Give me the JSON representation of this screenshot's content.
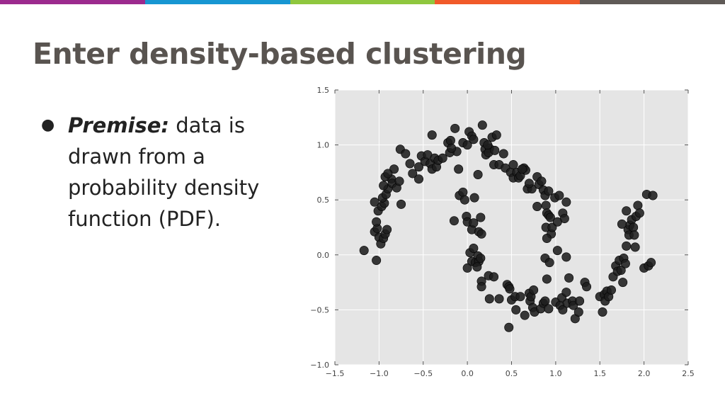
{
  "header": {
    "bar_colors": [
      "#9c2a8e",
      "#1796d2",
      "#8fc73e",
      "#f15a29",
      "#5f5a57"
    ]
  },
  "slide": {
    "title": "Enter density-based clustering",
    "bullet": {
      "symbol": "●",
      "label": "Premise:",
      "text": " data is drawn from a probability density function (PDF)."
    }
  },
  "chart_data": {
    "type": "scatter",
    "title": "",
    "xlabel": "",
    "ylabel": "",
    "xlim": [
      -1.5,
      2.5
    ],
    "ylim": [
      -1.0,
      1.5
    ],
    "x_ticks": [
      "−1.5",
      "−1.0",
      "−0.5",
      "0.0",
      "0.5",
      "1.0",
      "1.5",
      "2.0",
      "2.5"
    ],
    "y_ticks": [
      "−1.0",
      "−0.5",
      "0.0",
      "0.5",
      "1.0",
      "1.5"
    ],
    "grid": true,
    "background": "#e5e5e5",
    "marker_color": "#1e1e1e",
    "series": [
      {
        "points": [
          [
            -1.17,
            0.04
          ],
          [
            -1.03,
            -0.05
          ],
          [
            -1.05,
            0.21
          ],
          [
            -1.02,
            0.24
          ],
          [
            -1.03,
            0.3
          ],
          [
            -1.0,
            0.16
          ],
          [
            -0.98,
            0.1
          ],
          [
            -0.95,
            0.15
          ],
          [
            -0.93,
            0.19
          ],
          [
            -0.91,
            0.23
          ],
          [
            -1.05,
            0.48
          ],
          [
            -1.01,
            0.4
          ],
          [
            -0.97,
            0.44
          ],
          [
            -0.94,
            0.47
          ],
          [
            -0.96,
            0.52
          ],
          [
            -0.92,
            0.55
          ],
          [
            -0.9,
            0.6
          ],
          [
            -0.86,
            0.69
          ],
          [
            -0.83,
            0.78
          ],
          [
            -0.95,
            0.63
          ],
          [
            -0.93,
            0.71
          ],
          [
            -0.9,
            0.74
          ],
          [
            -0.85,
            0.65
          ],
          [
            -0.8,
            0.61
          ],
          [
            -0.77,
            0.67
          ],
          [
            -0.75,
            0.46
          ],
          [
            -0.76,
            0.96
          ],
          [
            -0.7,
            0.92
          ],
          [
            -0.65,
            0.83
          ],
          [
            -0.62,
            0.74
          ],
          [
            -0.55,
            0.69
          ],
          [
            -0.55,
            0.8
          ],
          [
            -0.52,
            0.9
          ],
          [
            -0.48,
            0.85
          ],
          [
            -0.45,
            0.91
          ],
          [
            -0.42,
            0.83
          ],
          [
            -0.4,
            0.78
          ],
          [
            -0.37,
            0.88
          ],
          [
            -0.35,
            0.8
          ],
          [
            -0.33,
            0.86
          ],
          [
            -0.28,
            0.88
          ],
          [
            -0.4,
            1.09
          ],
          [
            -0.22,
            1.02
          ],
          [
            -0.19,
            1.04
          ],
          [
            -0.14,
            1.15
          ],
          [
            -0.12,
            0.94
          ],
          [
            -0.1,
            0.78
          ],
          [
            -0.05,
            1.02
          ],
          [
            0.0,
            1.0
          ],
          [
            0.02,
            1.12
          ],
          [
            0.05,
            1.08
          ],
          [
            0.07,
            1.05
          ],
          [
            0.12,
            0.73
          ],
          [
            0.17,
            1.18
          ],
          [
            0.19,
            1.02
          ],
          [
            0.2,
            0.96
          ],
          [
            0.21,
            0.91
          ],
          [
            0.25,
            0.97
          ],
          [
            0.24,
            0.93
          ],
          [
            0.28,
            1.07
          ],
          [
            0.3,
            0.82
          ],
          [
            0.33,
            1.09
          ],
          [
            0.36,
            0.82
          ],
          [
            0.41,
            0.92
          ],
          [
            0.43,
            0.79
          ],
          [
            0.49,
            0.75
          ],
          [
            0.52,
            0.82
          ],
          [
            0.52,
            0.7
          ],
          [
            0.56,
            0.75
          ],
          [
            0.58,
            0.7
          ],
          [
            0.6,
            0.72
          ],
          [
            0.64,
            0.79
          ],
          [
            0.66,
            0.77
          ],
          [
            0.68,
            0.6
          ],
          [
            0.73,
            0.6
          ],
          [
            0.79,
            0.71
          ],
          [
            0.81,
            0.64
          ],
          [
            0.79,
            0.44
          ],
          [
            0.84,
            0.67
          ],
          [
            0.86,
            0.59
          ],
          [
            0.89,
            0.45
          ],
          [
            0.88,
            0.54
          ],
          [
            0.9,
            0.38
          ],
          [
            0.89,
            0.25
          ],
          [
            0.92,
            0.36
          ],
          [
            0.95,
            0.19
          ],
          [
            0.96,
            0.25
          ],
          [
            0.94,
            0.34
          ],
          [
            0.9,
            0.15
          ],
          [
            0.88,
            -0.03
          ],
          [
            0.93,
            -0.07
          ],
          [
            0.99,
            0.52
          ],
          [
            1.04,
            0.54
          ],
          [
            1.08,
            0.38
          ],
          [
            1.1,
            0.33
          ],
          [
            1.12,
            0.48
          ],
          [
            1.02,
            0.04
          ],
          [
            1.12,
            -0.02
          ],
          [
            -0.15,
            0.31
          ],
          [
            -0.09,
            0.54
          ],
          [
            -0.05,
            0.57
          ],
          [
            -0.03,
            0.5
          ],
          [
            -0.01,
            0.35
          ],
          [
            0.0,
            0.3
          ],
          [
            0.05,
            0.23
          ],
          [
            0.07,
            0.29
          ],
          [
            0.08,
            0.52
          ],
          [
            0.13,
            0.21
          ],
          [
            0.16,
            0.19
          ],
          [
            0.15,
            0.34
          ],
          [
            0.03,
            0.02
          ],
          [
            0.05,
            -0.06
          ],
          [
            0.07,
            0.06
          ],
          [
            0.09,
            -0.07
          ],
          [
            0.12,
            -0.01
          ],
          [
            0.13,
            -0.06
          ],
          [
            0.11,
            -0.11
          ],
          [
            0.15,
            -0.03
          ],
          [
            0.0,
            -0.12
          ],
          [
            0.16,
            -0.24
          ],
          [
            0.16,
            -0.29
          ],
          [
            0.24,
            -0.19
          ],
          [
            0.25,
            -0.4
          ],
          [
            0.3,
            -0.2
          ],
          [
            0.36,
            -0.4
          ],
          [
            0.45,
            -0.27
          ],
          [
            0.47,
            -0.29
          ],
          [
            0.48,
            -0.31
          ],
          [
            0.5,
            -0.41
          ],
          [
            0.54,
            -0.38
          ],
          [
            0.55,
            -0.5
          ],
          [
            0.6,
            -0.38
          ],
          [
            0.47,
            -0.66
          ],
          [
            0.65,
            -0.55
          ],
          [
            0.7,
            -0.35
          ],
          [
            0.71,
            -0.42
          ],
          [
            0.72,
            -0.38
          ],
          [
            0.75,
            -0.32
          ],
          [
            0.74,
            -0.48
          ],
          [
            0.76,
            -0.52
          ],
          [
            0.83,
            -0.49
          ],
          [
            0.86,
            -0.44
          ],
          [
            0.88,
            -0.42
          ],
          [
            0.9,
            -0.22
          ],
          [
            0.92,
            -0.49
          ],
          [
            1.0,
            -0.43
          ],
          [
            1.05,
            -0.46
          ],
          [
            1.07,
            -0.39
          ],
          [
            1.08,
            -0.5
          ],
          [
            1.12,
            -0.34
          ],
          [
            1.13,
            -0.44
          ],
          [
            1.15,
            -0.21
          ],
          [
            1.19,
            -0.42
          ],
          [
            1.2,
            -0.46
          ],
          [
            1.22,
            -0.58
          ],
          [
            1.26,
            -0.52
          ],
          [
            1.27,
            -0.42
          ],
          [
            1.33,
            -0.25
          ],
          [
            1.35,
            -0.29
          ],
          [
            1.5,
            -0.38
          ],
          [
            1.53,
            -0.52
          ],
          [
            1.55,
            -0.36
          ],
          [
            1.56,
            -0.42
          ],
          [
            1.58,
            -0.33
          ],
          [
            1.6,
            -0.38
          ],
          [
            1.63,
            -0.32
          ],
          [
            1.65,
            -0.2
          ],
          [
            1.68,
            -0.1
          ],
          [
            1.7,
            -0.15
          ],
          [
            1.72,
            -0.05
          ],
          [
            1.74,
            -0.14
          ],
          [
            1.76,
            -0.25
          ],
          [
            1.77,
            -0.03
          ],
          [
            1.79,
            -0.08
          ],
          [
            1.8,
            0.08
          ],
          [
            1.82,
            0.23
          ],
          [
            1.83,
            0.18
          ],
          [
            1.84,
            0.27
          ],
          [
            1.86,
            0.32
          ],
          [
            1.88,
            0.25
          ],
          [
            1.89,
            0.18
          ],
          [
            1.9,
            0.07
          ],
          [
            1.91,
            0.35
          ],
          [
            1.93,
            0.45
          ],
          [
            1.95,
            0.38
          ],
          [
            1.8,
            0.4
          ],
          [
            1.75,
            0.28
          ],
          [
            2.0,
            -0.12
          ],
          [
            2.05,
            -0.1
          ],
          [
            2.08,
            -0.07
          ],
          [
            2.03,
            0.55
          ],
          [
            2.1,
            0.54
          ],
          [
            -0.2,
            0.93
          ],
          [
            -0.18,
            0.97
          ],
          [
            0.23,
            1.0
          ],
          [
            0.31,
            0.95
          ],
          [
            0.62,
            0.78
          ],
          [
            0.7,
            0.65
          ],
          [
            0.92,
            0.58
          ],
          [
            1.02,
            0.3
          ]
        ]
      }
    ]
  }
}
